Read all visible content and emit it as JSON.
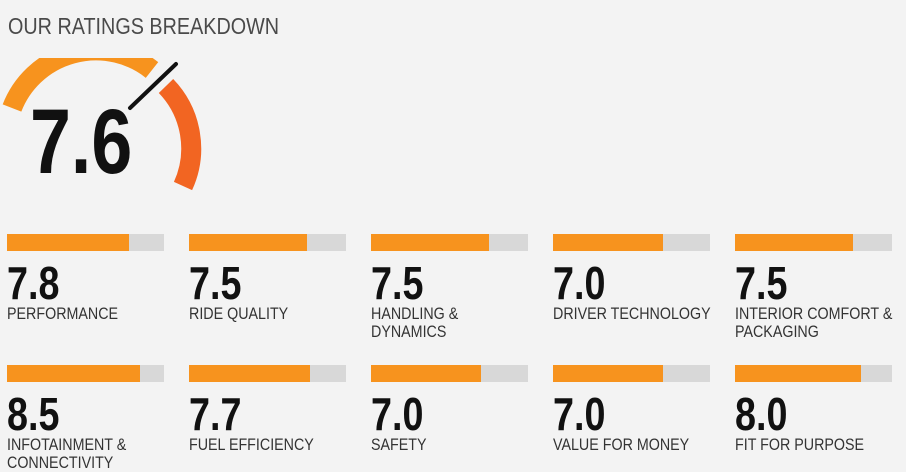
{
  "header": {
    "title": "OUR RATINGS BREAKDOWN"
  },
  "overall": {
    "score": "7.6",
    "value": 7.6,
    "max": 10
  },
  "colors": {
    "bar_fill": "#f7931e",
    "bar_track": "#d8d8d8",
    "gauge_orange": "#f7931e",
    "gauge_red": "#f26522"
  },
  "ratings": [
    {
      "score": "7.8",
      "value": 7.8,
      "label": "PERFORMANCE"
    },
    {
      "score": "7.5",
      "value": 7.5,
      "label": "RIDE QUALITY"
    },
    {
      "score": "7.5",
      "value": 7.5,
      "label": "HANDLING & DYNAMICS"
    },
    {
      "score": "7.0",
      "value": 7.0,
      "label": "DRIVER TECHNOLOGY"
    },
    {
      "score": "7.5",
      "value": 7.5,
      "label": "INTERIOR COMFORT & PACKAGING"
    },
    {
      "score": "8.5",
      "value": 8.5,
      "label": "INFOTAINMENT & CONNECTIVITY"
    },
    {
      "score": "7.7",
      "value": 7.7,
      "label": "FUEL EFFICIENCY"
    },
    {
      "score": "7.0",
      "value": 7.0,
      "label": "SAFETY"
    },
    {
      "score": "7.0",
      "value": 7.0,
      "label": "VALUE FOR MONEY"
    },
    {
      "score": "8.0",
      "value": 8.0,
      "label": "FIT FOR PURPOSE"
    }
  ]
}
